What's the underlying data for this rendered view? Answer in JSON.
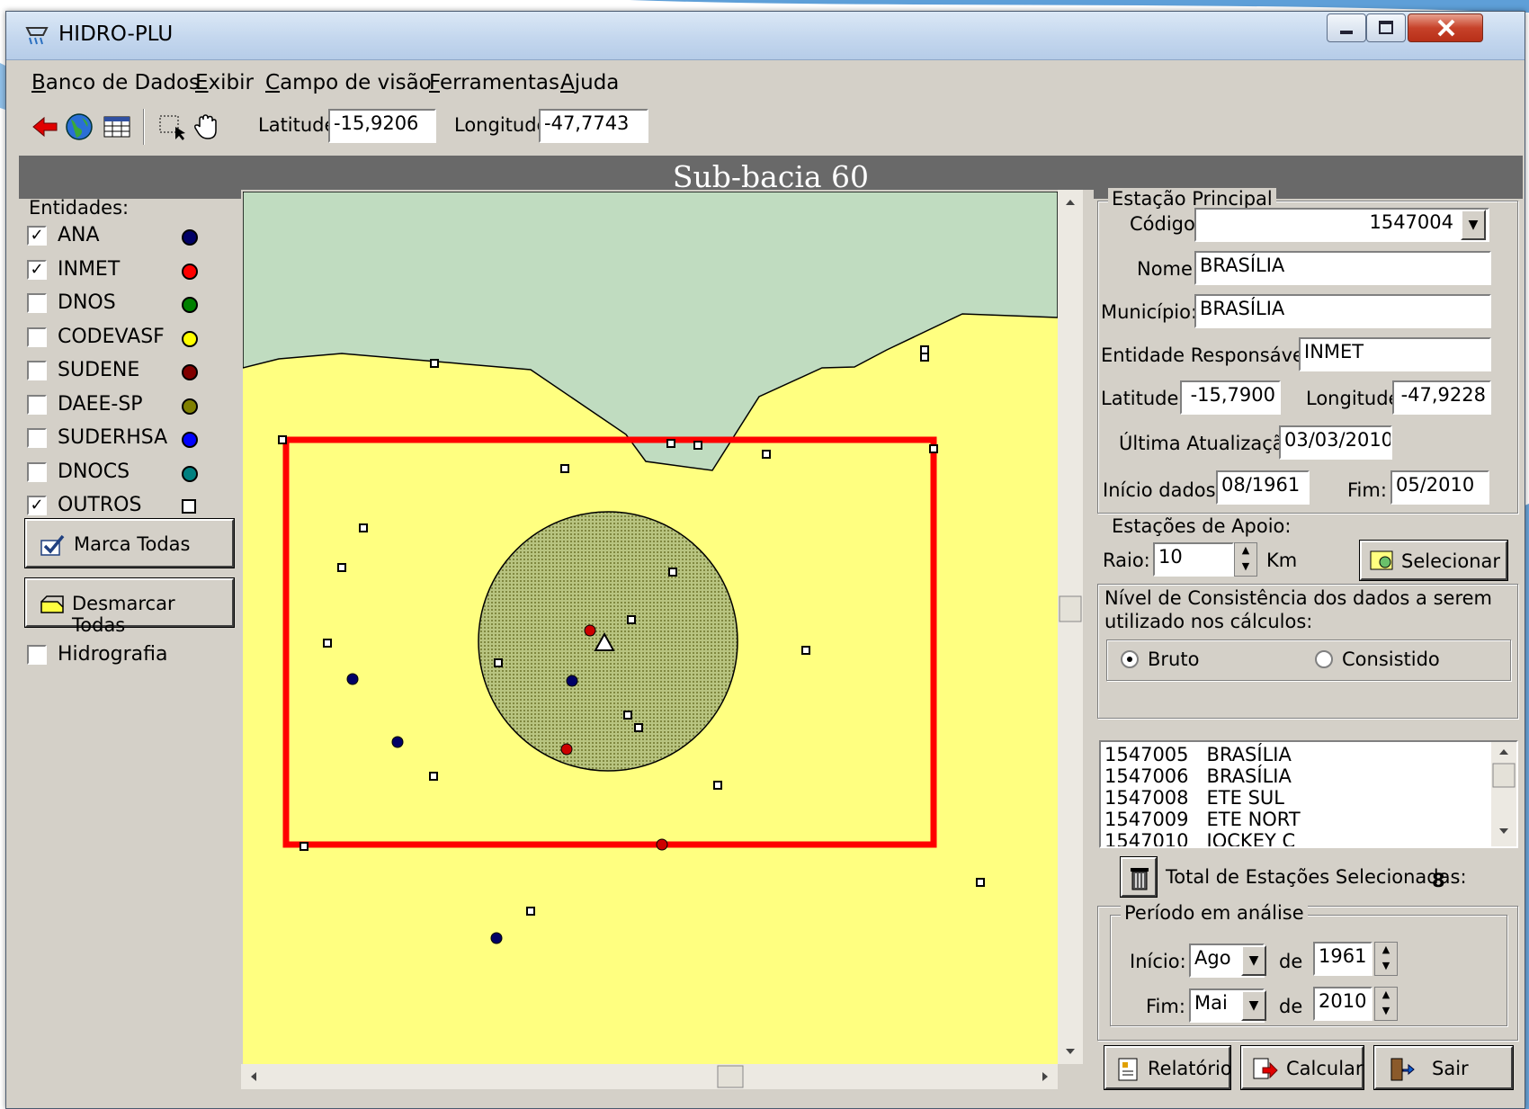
{
  "window": {
    "title": "HIDRO-PLU"
  },
  "menu": {
    "items": [
      "Banco de Dados",
      "Exibir",
      "Campo de visão",
      "Ferramentas",
      "Ajuda"
    ]
  },
  "toolbar": {
    "latitude_label": "Latitude:",
    "latitude_value": "-15,9206",
    "longitude_label": "Longitude:",
    "longitude_value": "-47,7743"
  },
  "header": {
    "title": "Sub-bacia 60"
  },
  "entities": {
    "label": "Entidades:",
    "items": [
      {
        "name": "ANA",
        "checked": true,
        "color": "#000066",
        "marker": "dot"
      },
      {
        "name": "INMET",
        "checked": true,
        "color": "#ff0000",
        "marker": "dot"
      },
      {
        "name": "DNOS",
        "checked": false,
        "color": "#008000",
        "marker": "dot"
      },
      {
        "name": "CODEVASF",
        "checked": false,
        "color": "#ffff00",
        "marker": "dot"
      },
      {
        "name": "SUDENE",
        "checked": false,
        "color": "#800000",
        "marker": "dot"
      },
      {
        "name": "DAEE-SP",
        "checked": false,
        "color": "#808000",
        "marker": "dot"
      },
      {
        "name": "SUDERHSA",
        "checked": false,
        "color": "#0000ff",
        "marker": "dot"
      },
      {
        "name": "DNOCS",
        "checked": false,
        "color": "#008080",
        "marker": "dot"
      },
      {
        "name": "OUTROS",
        "checked": true,
        "color": "#ffffff",
        "marker": "square"
      }
    ],
    "mark_all_label": "Marca Todas",
    "unmark_all_label": "Desmarcar Todas",
    "hydro_label": "Hidrografia",
    "hydro_checked": false
  },
  "main_station": {
    "group_title": "Estação Principal",
    "code_label": "Código:",
    "code_value": "1547004",
    "name_label": "Nome:",
    "name_value": "BRASÍLIA",
    "municipality_label": "Município:",
    "municipality_value": "BRASÍLIA",
    "entity_label": "Entidade Responsável:",
    "entity_value": "INMET",
    "lat_label": "Latitude:",
    "lat_value": "-15,7900",
    "lon_label": "Longitude:",
    "lon_value": "-47,9228",
    "update_label": "Última Atualização:",
    "update_value": "03/03/2010",
    "start_label": "Início dados:",
    "start_value": "08/1961",
    "end_label": "Fim:",
    "end_value": "05/2010"
  },
  "support_stations": {
    "group_title": "Estações de Apoio:",
    "radius_label": "Raio:",
    "radius_value": "10",
    "radius_unit": "Km",
    "select_label": "Selecionar",
    "consistency_text_1": "Nível de Consistência dos dados a serem",
    "consistency_text_2": "utilizado nos cálculos:",
    "raw_label": "Bruto",
    "consisted_label": "Consistido",
    "selected_mode": "Bruto",
    "list": [
      {
        "code": "1547005",
        "name": "BRASÍLIA"
      },
      {
        "code": "1547006",
        "name": "BRASÍLIA"
      },
      {
        "code": "1547008",
        "name": "ETE SUL"
      },
      {
        "code": "1547009",
        "name": "ETE NORT"
      },
      {
        "code": "1547010",
        "name": "JOCKEY C"
      }
    ],
    "total_label": "Total de Estações Selecionadas:",
    "total_value": "8"
  },
  "period": {
    "group_title": "Período em análise",
    "start_label": "Início:",
    "start_month": "Ago",
    "start_de": "de",
    "start_year": "1961",
    "end_label": "Fim:",
    "end_month": "Mai",
    "end_de": "de",
    "end_year": "2010"
  },
  "actions": {
    "report_label": "Relatório",
    "calc_label": "Calcular",
    "exit_label": "Sair"
  },
  "map": {
    "colors": {
      "basin": "#ffff80",
      "outside": "#c0dcc0",
      "highlight": "#ff0000",
      "buffer": "#a8b46a"
    }
  }
}
